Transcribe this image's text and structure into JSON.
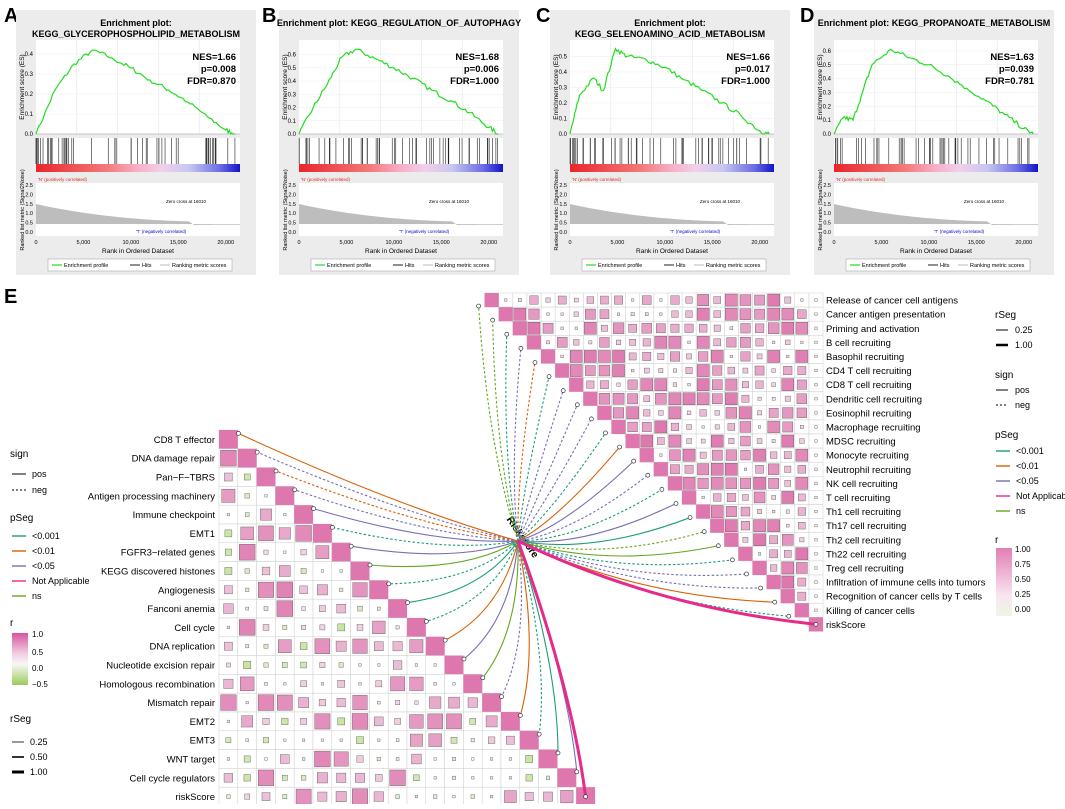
{
  "panel_letters": [
    "A",
    "B",
    "C",
    "D",
    "E"
  ],
  "gsea": {
    "common": {
      "ylabel_es": "Enrichment score (ES)",
      "ylabel_rank": "Ranked list metric (Signal2Noise)",
      "xlabel": "Rank in Ordered Dataset",
      "pos_label": "'N' (positively correlated)",
      "neg_label": "'T' (negatively correlated)",
      "zero_cross": "Zero cross at 16010",
      "x_ticks": [
        "0",
        "5,000",
        "10,000",
        "15,000",
        "20,000"
      ],
      "rank_y_ticks": [
        "2.5",
        "2.0",
        "1.5",
        "1.0",
        "0.5",
        "0.0"
      ],
      "legend": [
        "Enrichment profile",
        "Hits",
        "Ranking metric scores"
      ]
    },
    "panels": [
      {
        "letter": "A",
        "title_line1": "Enrichment plot:",
        "title_line2": "KEGG_GLYCEROPHOSPHOLIPID_METABOLISM",
        "nes": "NES=1.66",
        "p": "p=0.008",
        "fdr": "FDR=0.870",
        "es_ticks": [
          "0.4",
          "0.3",
          "0.2",
          "0.1",
          "0.0"
        ],
        "es_max": 0.45,
        "peak_rank": 6000,
        "peak_es": 0.42,
        "end_es": 0.0
      },
      {
        "letter": "B",
        "title_line1": "Enrichment plot: KEGG_REGULATION_OF_AUTOPHAGY",
        "title_line2": "",
        "nes": "NES=1.68",
        "p": "p=0.006",
        "fdr": "FDR=1.000",
        "es_ticks": [
          "0.6",
          "0.5",
          "0.4",
          "0.3",
          "0.2",
          "0.1",
          "0.0"
        ],
        "es_max": 0.68,
        "peak_rank": 6000,
        "peak_es": 0.64,
        "end_es": 0.0
      },
      {
        "letter": "C",
        "title_line1": "Enrichment plot:",
        "title_line2": "KEGG_SELENOAMINO_ACID_METABOLISM",
        "nes": "NES=1.66",
        "p": "p=0.017",
        "fdr": "FDR=1.000",
        "es_ticks": [
          "0.5",
          "0.4",
          "0.3",
          "0.2",
          "0.1",
          "0.0"
        ],
        "es_max": 0.58,
        "peak_rank": 4800,
        "peak_es": 0.55,
        "end_es": 0.0
      },
      {
        "letter": "D",
        "title_line1": "Enrichment plot: KEGG_PROPANOATE_METABOLISM",
        "title_line2": "",
        "nes": "NES=1.63",
        "p": "p=0.039",
        "fdr": "FDR=0.781",
        "es_ticks": [
          "0.6",
          "0.5",
          "0.4",
          "0.3",
          "0.2",
          "0.1",
          "0.0"
        ],
        "es_max": 0.65,
        "peak_rank": 6000,
        "peak_es": 0.61,
        "end_es": 0.0
      }
    ]
  },
  "chart_data": [
    {
      "type": "line",
      "panel": "A",
      "title": "Enrichment plot: KEGG_GLYCEROPHOSPHOLIPID_METABOLISM",
      "xlabel": "Rank in Ordered Dataset",
      "ylabel": "Enrichment score (ES)",
      "x": [
        0,
        2000,
        4000,
        6000,
        8000,
        10000,
        12000,
        14000,
        16000,
        18000,
        20000,
        21000
      ],
      "y": [
        0.0,
        0.22,
        0.35,
        0.42,
        0.38,
        0.33,
        0.27,
        0.22,
        0.16,
        0.09,
        0.02,
        0.0
      ],
      "ylim": [
        0,
        0.45
      ],
      "xlim": [
        0,
        21500
      ]
    },
    {
      "type": "line",
      "panel": "B",
      "title": "Enrichment plot: KEGG_REGULATION_OF_AUTOPHAGY",
      "xlabel": "Rank in Ordered Dataset",
      "ylabel": "Enrichment score (ES)",
      "x": [
        0,
        1500,
        3000,
        4500,
        6000,
        8000,
        10000,
        12000,
        14000,
        16000,
        18000,
        20000,
        21000
      ],
      "y": [
        0.0,
        0.2,
        0.38,
        0.58,
        0.64,
        0.57,
        0.5,
        0.42,
        0.33,
        0.25,
        0.16,
        0.05,
        0.0
      ],
      "ylim": [
        0,
        0.68
      ],
      "xlim": [
        0,
        21500
      ]
    },
    {
      "type": "line",
      "panel": "C",
      "title": "Enrichment plot: KEGG_SELENOAMINO_ACID_METABOLISM",
      "xlabel": "Rank in Ordered Dataset",
      "ylabel": "Enrichment score (ES)",
      "x": [
        0,
        1000,
        2500,
        3500,
        4800,
        6000,
        8000,
        10000,
        12000,
        14000,
        16000,
        18000,
        20000,
        21000
      ],
      "y": [
        0.0,
        0.25,
        0.36,
        0.28,
        0.55,
        0.5,
        0.48,
        0.43,
        0.35,
        0.28,
        0.2,
        0.12,
        0.02,
        0.0
      ],
      "ylim": [
        0,
        0.58
      ],
      "xlim": [
        0,
        21500
      ]
    },
    {
      "type": "line",
      "panel": "D",
      "title": "Enrichment plot: KEGG_PROPANOATE_METABOLISM",
      "xlabel": "Rank in Ordered Dataset",
      "ylabel": "Enrichment score (ES)",
      "x": [
        0,
        1000,
        2000,
        3000,
        4000,
        6000,
        8000,
        10000,
        12000,
        14000,
        16000,
        18000,
        20000,
        21000
      ],
      "y": [
        0.0,
        0.12,
        0.1,
        0.3,
        0.5,
        0.61,
        0.55,
        0.5,
        0.42,
        0.33,
        0.24,
        0.14,
        0.04,
        0.0
      ],
      "ylim": [
        0,
        0.65
      ],
      "xlim": [
        0,
        21500
      ]
    },
    {
      "type": "heatmap",
      "panel": "E-left",
      "labels": [
        "CD8 T effector",
        "DNA damage repair",
        "Pan−F−TBRS",
        "Antigen processing machinery",
        "Immune checkpoint",
        "EMT1",
        "FGFR3−related genes",
        "KEGG discovered histones",
        "Angiogenesis",
        "Fanconi anemia",
        "Cell cycle",
        "DNA replication",
        "Nucleotide excision repair",
        "Homologous recombination",
        "Mismatch repair",
        "EMT2",
        "EMT3",
        "WNT target",
        "Cell cycle regulators",
        "riskScore"
      ]
    },
    {
      "type": "heatmap",
      "panel": "E-right",
      "labels": [
        "Release of cancer cell antigens",
        "Cancer antigen presentation",
        "Priming and activation",
        "B cell recruiting",
        "Basophil recruiting",
        "CD4 T cell recruiting",
        "CD8 T cell recruiting",
        "Dendritic cell recruiting",
        "Eosinophil recruiting",
        "Macrophage recruiting",
        "MDSC recruiting",
        "Monocyte recruiting",
        "Neutrophil recruiting",
        "NK cell recruiting",
        "T cell recruiting",
        "Th1 cell recruiting",
        "Th17 cell recruiting",
        "Th2 cell recruiting",
        "Th22 cell recruiting",
        "Treg cell recruiting",
        "Infiltration of immune cells into tumors",
        "Recognition of cancer cells by T cells",
        "Killing of cancer cells",
        "riskScore"
      ]
    }
  ],
  "network": {
    "center_label": "Riskscore"
  },
  "legends_left": {
    "sign_title": "sign",
    "sign_items": [
      "pos",
      "neg"
    ],
    "pseg_title": "pSeg",
    "pseg_items": [
      "<0.001",
      "<0.01",
      "<0.05",
      "Not Applicable",
      "ns"
    ],
    "pseg_colors": [
      "#1b9e77",
      "#d95f02",
      "#7570b3",
      "#e7298a",
      "#66a61e"
    ],
    "r_title": "r",
    "r_ticks": [
      "1.0",
      "0.5",
      "0.0",
      "−0.5"
    ],
    "rseg_title": "rSeg",
    "rseg_items": [
      "0.25",
      "0.50",
      "1.00"
    ]
  },
  "legends_right": {
    "rseg_title": "rSeg",
    "rseg_items": [
      "0.25",
      "1.00"
    ],
    "sign_title": "sign",
    "sign_items": [
      "pos",
      "neg"
    ],
    "pseg_title": "pSeg",
    "pseg_items": [
      "<0.001",
      "<0.01",
      "<0.05",
      "Not Applicable",
      "ns"
    ],
    "pseg_colors": [
      "#1b9e77",
      "#d95f02",
      "#7570b3",
      "#e7298a",
      "#66a61e"
    ],
    "r_title": "r",
    "r_ticks": [
      "1.00",
      "0.75",
      "0.50",
      "0.25",
      "0.00"
    ]
  },
  "colors": {
    "es_line": "#22dd22",
    "pink": "#de77ae",
    "green": "#b8e186",
    "pos": "#d7301f",
    "neg": "#0000cc"
  }
}
